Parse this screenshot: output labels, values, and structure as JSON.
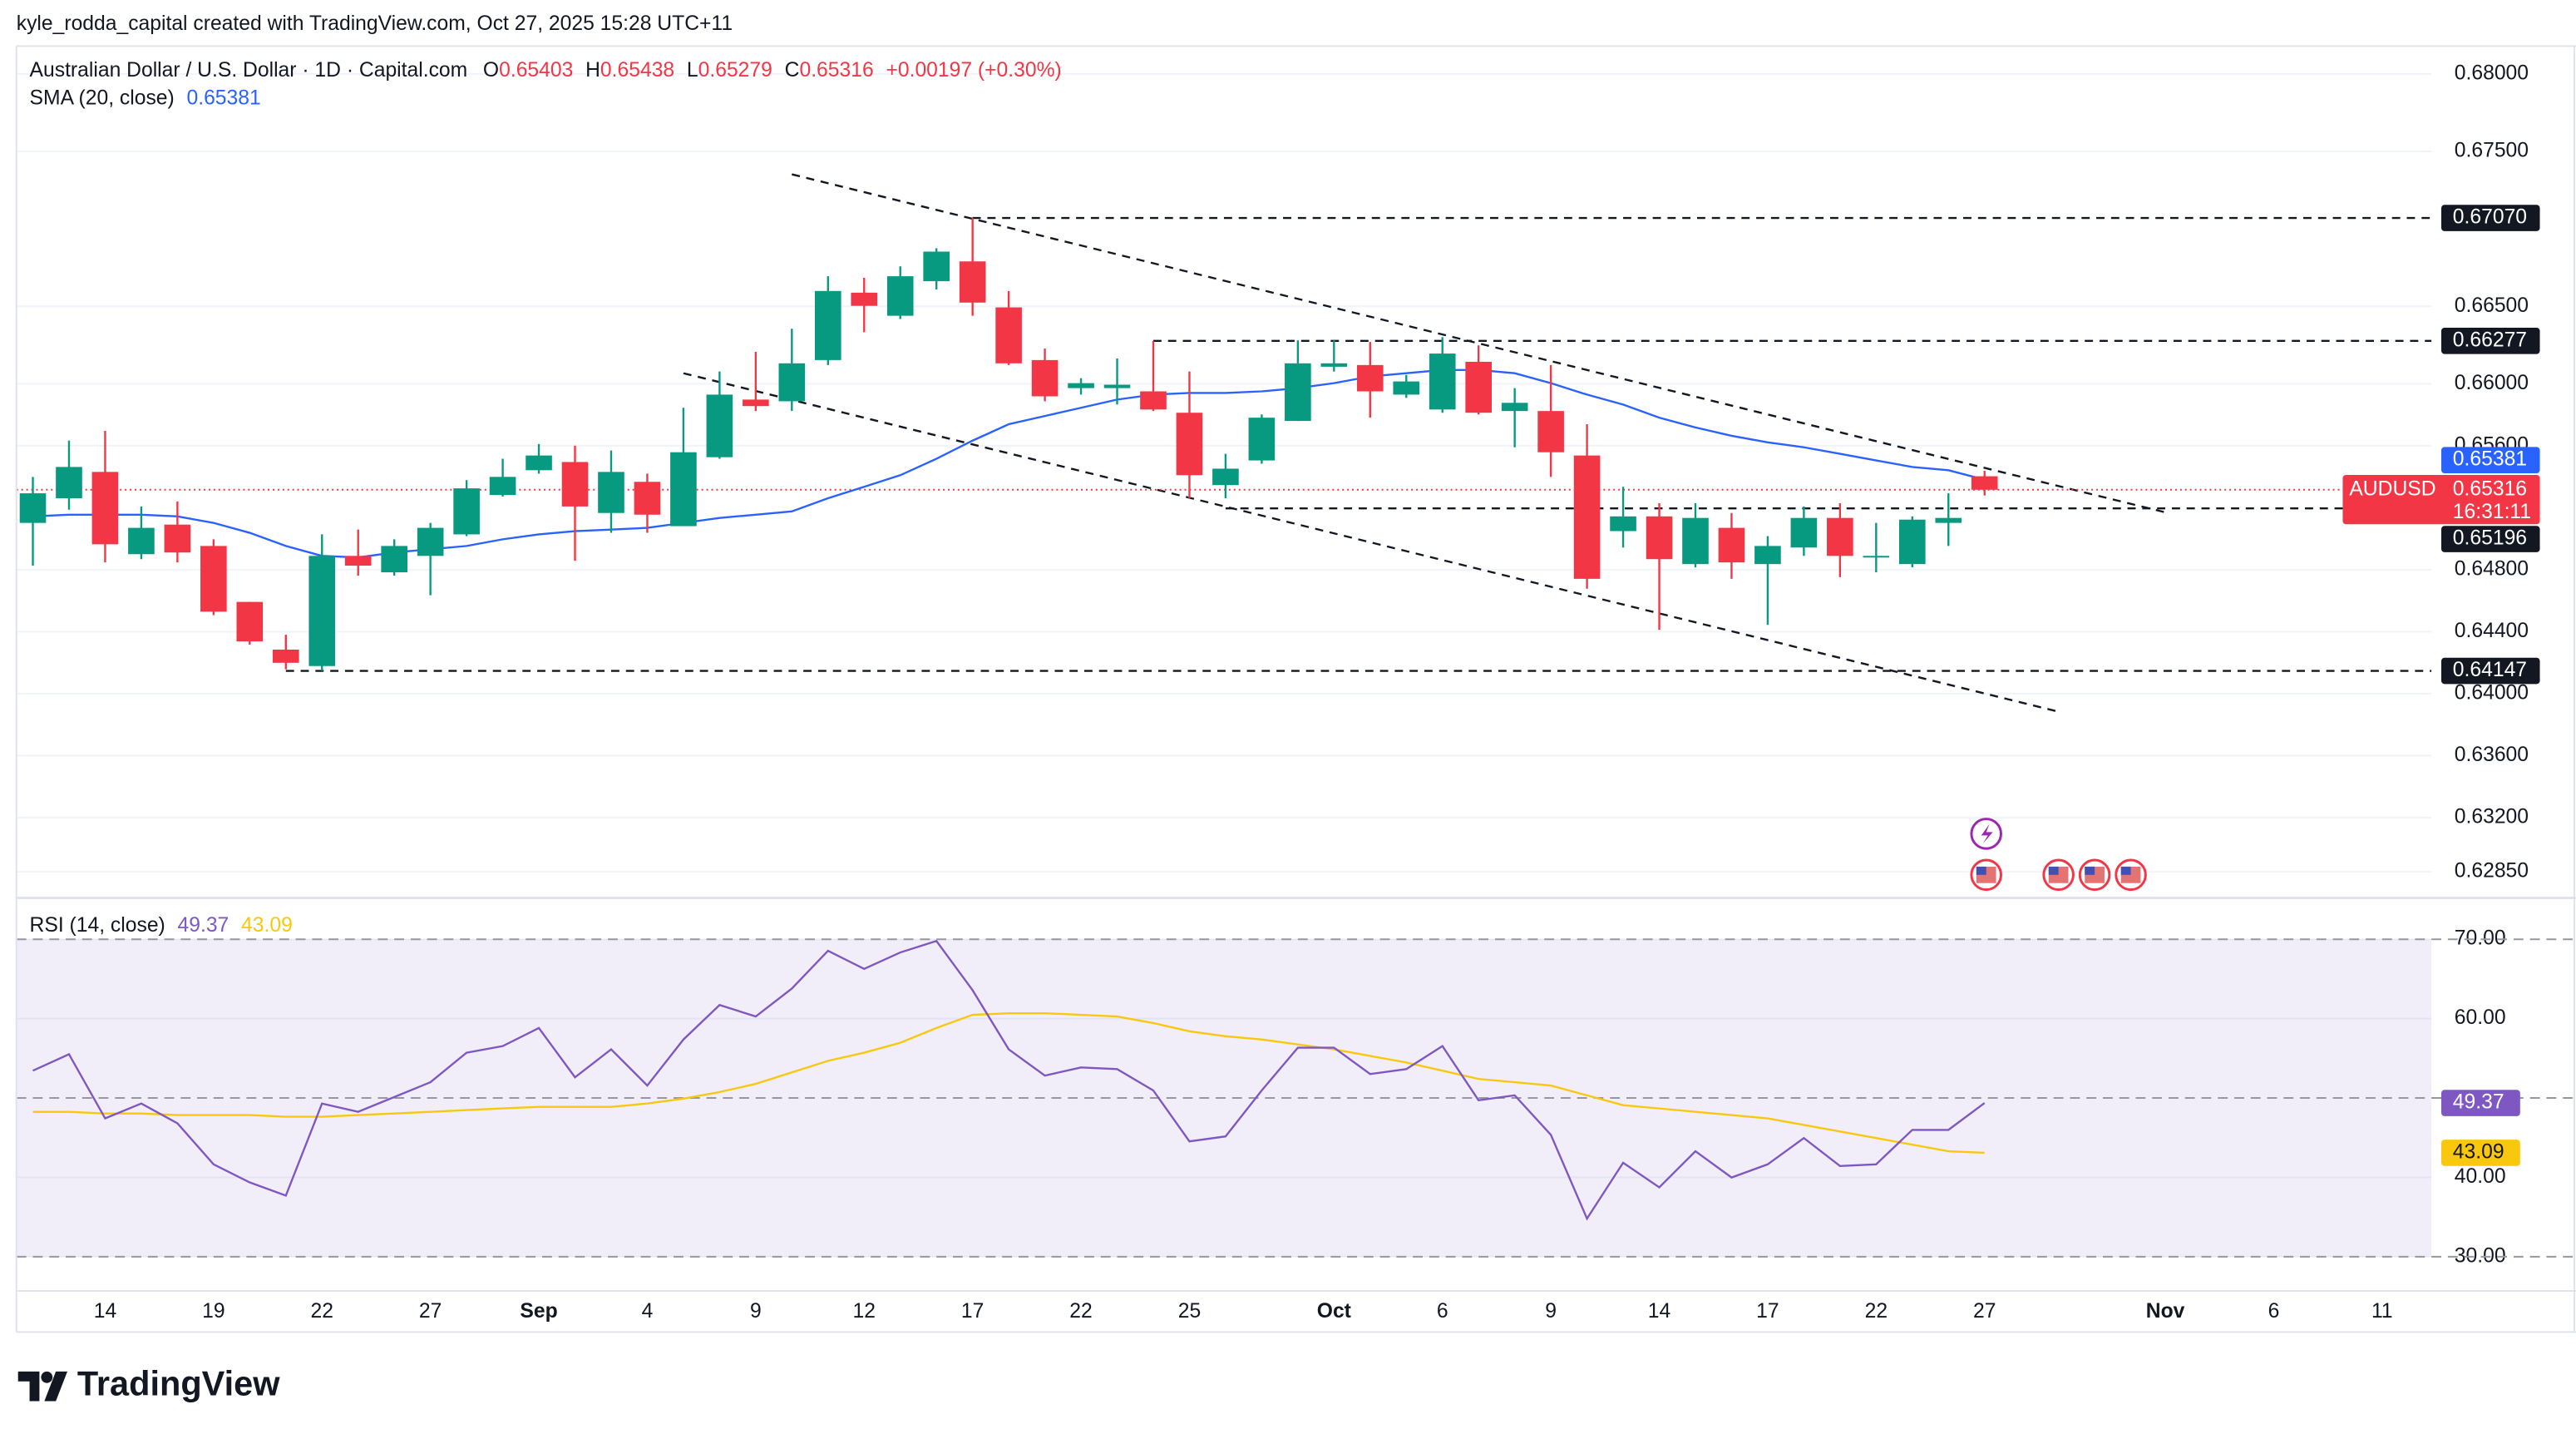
{
  "header": {
    "title": "kyle_rodda_capital created with TradingView.com, Oct 27, 2025 15:28 UTC+11"
  },
  "chart_data": [
    {
      "type": "candlestick",
      "title": "Australian Dollar / U.S. Dollar · 1D · Capital.com",
      "ohlc_labels": [
        "O",
        "H",
        "L",
        "C"
      ],
      "change": "+0.00197 (+0.30%)",
      "symbol": "AUDUSD",
      "countdown": "16:31:11",
      "up_color": "#089981",
      "down_color": "#f23645",
      "x": [
        0,
        1,
        2,
        3,
        4,
        5,
        6,
        7,
        8,
        9,
        10,
        11,
        12,
        13,
        14,
        15,
        16,
        17,
        18,
        19,
        20,
        21,
        22,
        23,
        24,
        25,
        26,
        27,
        28,
        29,
        30,
        31,
        32,
        33,
        34,
        35,
        36,
        37,
        38,
        39,
        40,
        41,
        42,
        43,
        44,
        45,
        46,
        47,
        48,
        49,
        50,
        51,
        52,
        53,
        54
      ],
      "open": [
        0.65102,
        0.65261,
        0.65431,
        0.649,
        0.65091,
        0.64953,
        0.64592,
        0.64284,
        0.64178,
        0.64889,
        0.64783,
        0.64889,
        0.65028,
        0.65282,
        0.65442,
        0.65495,
        0.65166,
        0.65367,
        0.65081,
        0.65526,
        0.65898,
        0.65887,
        0.66153,
        0.66588,
        0.66439,
        0.66662,
        0.6679,
        0.66493,
        0.66153,
        0.65972,
        0.65972,
        0.65951,
        0.65813,
        0.65346,
        0.65505,
        0.6576,
        0.6611,
        0.66121,
        0.6593,
        0.65834,
        0.66142,
        0.65824,
        0.65824,
        0.65537,
        0.65049,
        0.65144,
        0.64836,
        0.6507,
        0.64836,
        0.64943,
        0.65134,
        0.64879,
        0.64836,
        0.65102,
        0.65403
      ],
      "high": [
        0.65399,
        0.65633,
        0.65696,
        0.65208,
        0.6524,
        0.64996,
        0.64592,
        0.6438,
        0.65028,
        0.65059,
        0.64996,
        0.65102,
        0.65378,
        0.65516,
        0.65611,
        0.65601,
        0.65569,
        0.6542,
        0.65845,
        0.66079,
        0.66206,
        0.66355,
        0.66694,
        0.66684,
        0.66758,
        0.66875,
        0.6707,
        0.66599,
        0.66227,
        0.66036,
        0.66163,
        0.66277,
        0.66079,
        0.65548,
        0.65802,
        0.6628,
        0.6628,
        0.6627,
        0.66057,
        0.66301,
        0.66248,
        0.65972,
        0.66121,
        0.65739,
        0.65335,
        0.65229,
        0.65229,
        0.65166,
        0.65017,
        0.65208,
        0.65229,
        0.65102,
        0.65144,
        0.65293,
        0.65438
      ],
      "low": [
        0.64826,
        0.65187,
        0.64847,
        0.64868,
        0.64847,
        0.64507,
        0.64316,
        0.64157,
        0.64147,
        0.64762,
        0.64762,
        0.64635,
        0.65017,
        0.65272,
        0.6542,
        0.64858,
        0.65038,
        0.65038,
        0.65081,
        0.65516,
        0.65824,
        0.65824,
        0.66121,
        0.66333,
        0.66418,
        0.66609,
        0.66439,
        0.66121,
        0.65887,
        0.6593,
        0.65866,
        0.65824,
        0.65261,
        0.65261,
        0.65484,
        0.6576,
        0.66079,
        0.65781,
        0.65909,
        0.65813,
        0.65802,
        0.6559,
        0.65399,
        0.64677,
        0.64943,
        0.64412,
        0.64815,
        0.64741,
        0.64444,
        0.64889,
        0.64752,
        0.64783,
        0.64815,
        0.64953,
        0.65279
      ],
      "close": [
        0.65293,
        0.65463,
        0.64964,
        0.6507,
        0.64911,
        0.64529,
        0.64337,
        0.64199,
        0.64889,
        0.64826,
        0.64953,
        0.6507,
        0.65325,
        0.65399,
        0.65537,
        0.65208,
        0.65431,
        0.65155,
        0.65558,
        0.6593,
        0.65856,
        0.66132,
        0.66599,
        0.66503,
        0.66694,
        0.66853,
        0.66524,
        0.66132,
        0.65919,
        0.66004,
        0.65994,
        0.65834,
        0.6541,
        0.65452,
        0.65781,
        0.66132,
        0.66132,
        0.65951,
        0.66015,
        0.66195,
        0.65813,
        0.65877,
        0.65558,
        0.64741,
        0.65144,
        0.64868,
        0.65134,
        0.64847,
        0.64953,
        0.65134,
        0.64889,
        0.64889,
        0.65123,
        0.65134,
        0.65316
      ],
      "overlay": {
        "name": "SMA (20, close)",
        "color": "#2962ff",
        "values": [
          0.65144,
          0.65155,
          0.65155,
          0.65155,
          0.65144,
          0.65102,
          0.65038,
          0.64953,
          0.64889,
          0.64879,
          0.64911,
          0.64932,
          0.64953,
          0.64996,
          0.65028,
          0.65049,
          0.65059,
          0.6507,
          0.65102,
          0.65134,
          0.65155,
          0.65176,
          0.65261,
          0.65335,
          0.6541,
          0.65516,
          0.65633,
          0.65739,
          0.65792,
          0.65845,
          0.65898,
          0.6593,
          0.65941,
          0.65941,
          0.65951,
          0.65972,
          0.66004,
          0.66047,
          0.66068,
          0.66089,
          0.66089,
          0.66068,
          0.66004,
          0.6593,
          0.65866,
          0.65781,
          0.65718,
          0.65664,
          0.65622,
          0.6559,
          0.65548,
          0.65505,
          0.65463,
          0.65442,
          0.65381
        ]
      },
      "levels": [
        {
          "value": 0.6707,
          "label": "0.67070",
          "start": 26
        },
        {
          "value": 0.66277,
          "label": "0.66277",
          "start": 31
        },
        {
          "value": 0.65196,
          "label": "0.65196",
          "start": 33
        },
        {
          "value": 0.64147,
          "label": "0.64147",
          "start": 7
        }
      ],
      "trendlines": [
        {
          "x": [
            21,
            59.09
          ],
          "y": [
            0.67352,
            0.65165
          ]
        },
        {
          "x": [
            18,
            56.09
          ],
          "y": [
            0.66068,
            0.63881
          ]
        }
      ],
      "xlim": [
        -0.4545,
        66.3636
      ],
      "ylim": [
        0.62692,
        0.6818
      ],
      "xticks": [
        {
          "value": 2,
          "label": "14"
        },
        {
          "value": 5,
          "label": "19"
        },
        {
          "value": 8,
          "label": "22"
        },
        {
          "value": 11,
          "label": "27"
        },
        {
          "value": 14,
          "label": "Sep"
        },
        {
          "value": 17,
          "label": "4"
        },
        {
          "value": 20,
          "label": "9"
        },
        {
          "value": 23,
          "label": "12"
        },
        {
          "value": 26,
          "label": "17"
        },
        {
          "value": 29,
          "label": "22"
        },
        {
          "value": 32,
          "label": "25"
        },
        {
          "value": 36,
          "label": "Oct"
        },
        {
          "value": 39,
          "label": "6"
        },
        {
          "value": 42,
          "label": "9"
        },
        {
          "value": 45,
          "label": "14"
        },
        {
          "value": 48,
          "label": "17"
        },
        {
          "value": 51,
          "label": "22"
        },
        {
          "value": 54,
          "label": "27"
        },
        {
          "value": 59,
          "label": "Nov"
        },
        {
          "value": 62,
          "label": "6"
        },
        {
          "value": 65,
          "label": "11"
        }
      ],
      "yticks": [
        {
          "value": 0.68,
          "label": "0.68000"
        },
        {
          "value": 0.675,
          "label": "0.67500"
        },
        {
          "value": 0.665,
          "label": "0.66500"
        },
        {
          "value": 0.66,
          "label": "0.66000"
        },
        {
          "value": 0.656,
          "label": "0.65600"
        },
        {
          "value": 0.648,
          "label": "0.64800"
        },
        {
          "value": 0.644,
          "label": "0.64400"
        },
        {
          "value": 0.64,
          "label": "0.64000"
        },
        {
          "value": 0.636,
          "label": "0.63600"
        },
        {
          "value": 0.632,
          "label": "0.63200"
        },
        {
          "value": 0.6285,
          "label": "0.62850"
        }
      ],
      "grid": true
    },
    {
      "type": "line",
      "title": "RSI (14, close)",
      "series": [
        {
          "color": "#7e57c2",
          "values": [
            53.44,
            55.51,
            47.43,
            49.3,
            46.81,
            41.64,
            39.36,
            37.7,
            49.3,
            48.26,
            50.12,
            51.99,
            55.71,
            56.54,
            58.82,
            52.61,
            56.13,
            51.57,
            57.37,
            61.72,
            60.27,
            63.79,
            68.55,
            66.27,
            68.34,
            69.79,
            63.58,
            56.13,
            52.82,
            53.85,
            53.64,
            50.95,
            44.53,
            45.16,
            50.95,
            56.34,
            56.34,
            53.02,
            53.64,
            56.54,
            49.71,
            50.33,
            45.36,
            34.8,
            41.84,
            38.74,
            43.29,
            39.98,
            41.64,
            44.95,
            41.43,
            41.64,
            45.98,
            45.98,
            49.37
          ]
        },
        {
          "color": "#f9c80e",
          "values": [
            48.26,
            48.26,
            48.05,
            48.05,
            47.85,
            47.85,
            47.85,
            47.64,
            47.64,
            47.85,
            48.05,
            48.26,
            48.47,
            48.68,
            48.88,
            48.88,
            48.88,
            49.3,
            49.92,
            50.75,
            51.78,
            53.23,
            54.68,
            55.71,
            56.96,
            58.82,
            60.48,
            60.68,
            60.68,
            60.48,
            60.27,
            59.44,
            58.41,
            57.78,
            57.37,
            56.75,
            56.13,
            55.3,
            54.47,
            53.44,
            52.4,
            51.99,
            51.57,
            50.33,
            49.09,
            48.68,
            48.26,
            47.85,
            47.43,
            46.6,
            45.78,
            44.95,
            44.12,
            43.29,
            43.09
          ]
        }
      ],
      "levels": [
        30,
        50,
        70
      ],
      "band_color": "#7e57c2",
      "ylim": [
        26.1,
        74.8
      ],
      "yticks": [
        {
          "value": 70,
          "label": "70.00"
        },
        {
          "value": 60,
          "label": "60.00"
        },
        {
          "value": 40,
          "label": "40.00"
        },
        {
          "value": 30,
          "label": "30.00"
        }
      ],
      "grid": true
    }
  ],
  "footer": {
    "logo": "TradingView"
  }
}
